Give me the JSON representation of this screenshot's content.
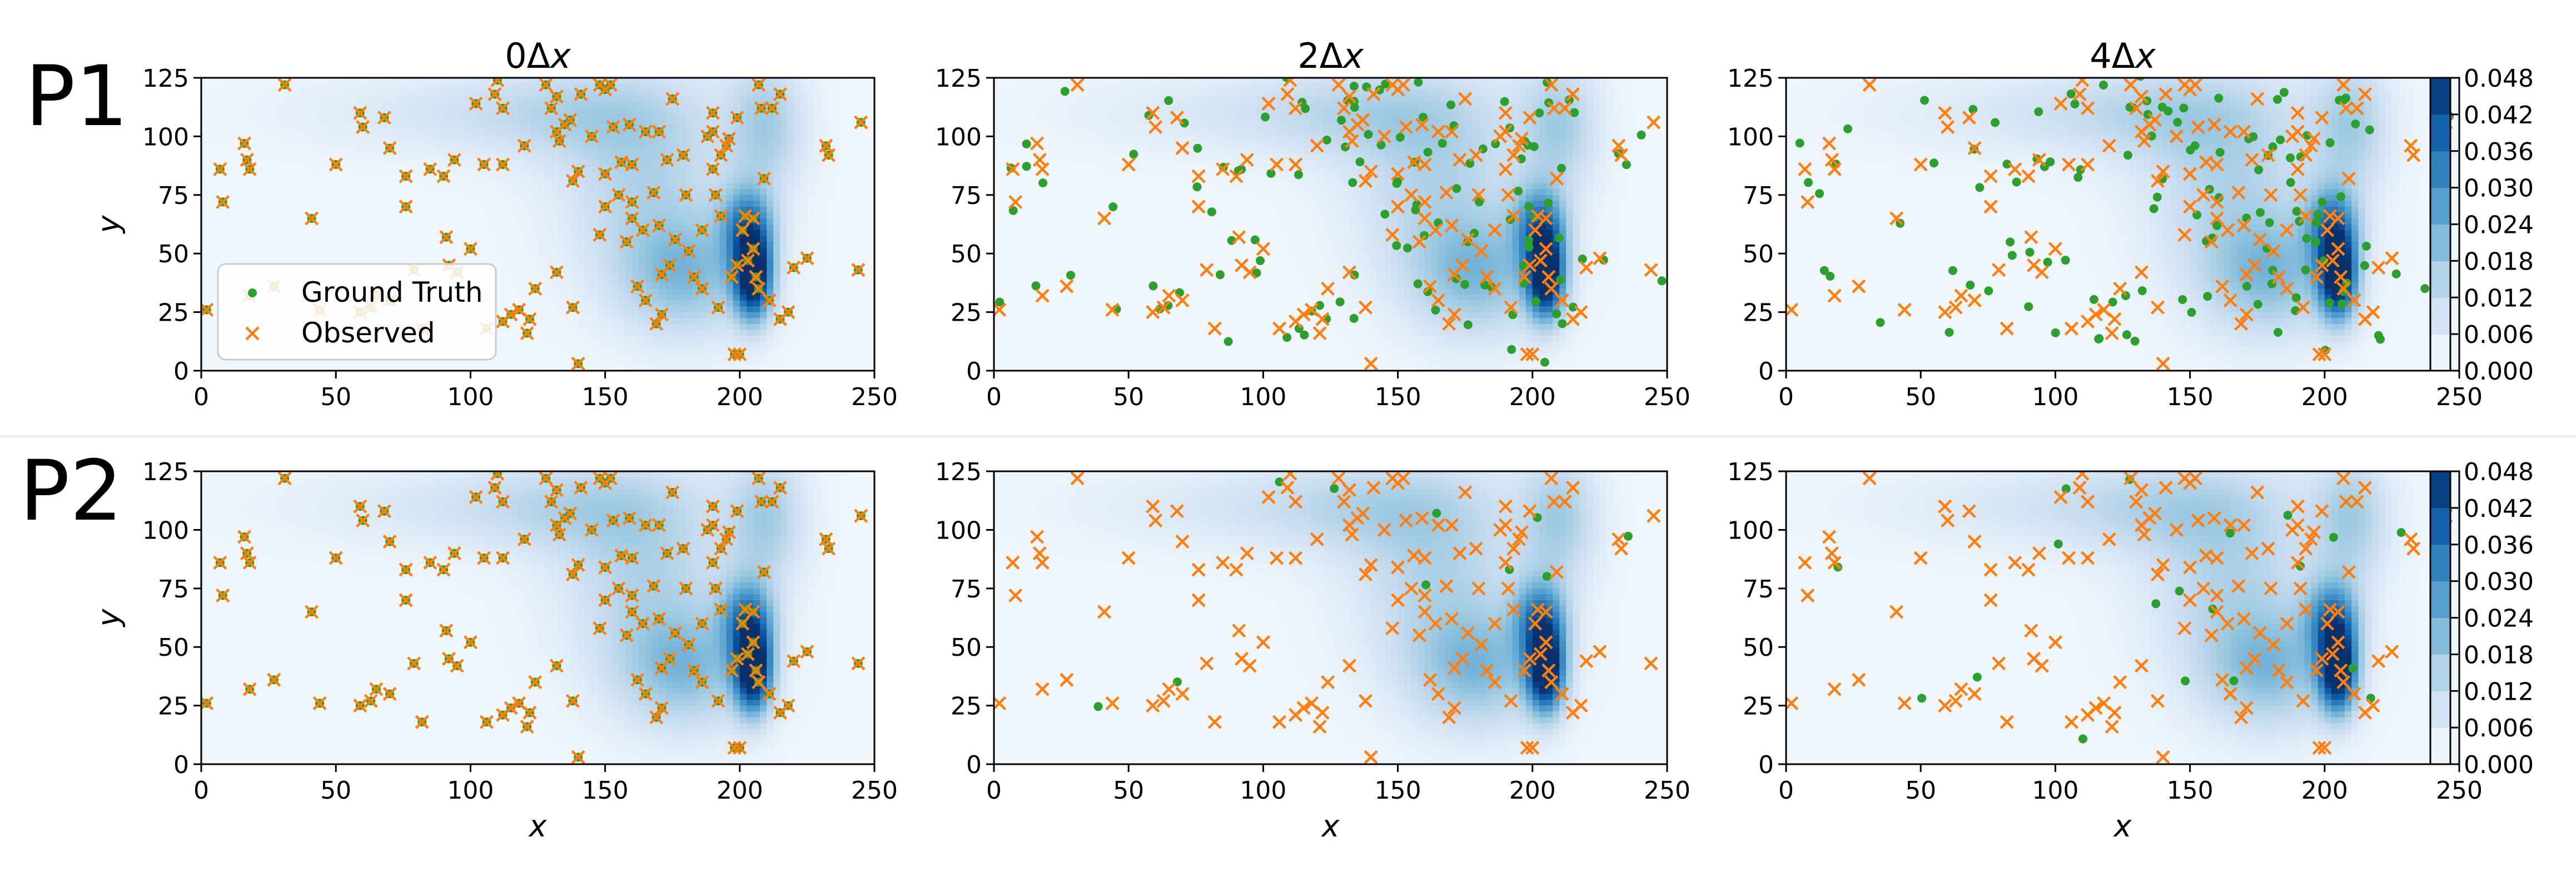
{
  "figure": {
    "row_labels": [
      "P1",
      "P2"
    ],
    "column_titles": [
      "0Δ",
      "2Δ",
      "4Δ"
    ],
    "column_title_var": "x",
    "legend": {
      "ground_truth": "Ground Truth",
      "observed": "Observed",
      "placement": "lower-left of top-left panel"
    },
    "colors": {
      "ground_truth": "#2ca02c",
      "observed": "#ff7f0e",
      "density_low": "#f1f7fd",
      "density_high": "#08306b"
    }
  },
  "chart_data": {
    "type": "scatter",
    "xlabel": "x",
    "ylabel": "y",
    "xlim": [
      0,
      250
    ],
    "ylim": [
      0,
      125
    ],
    "xticks": [
      0,
      50,
      100,
      150,
      200,
      250
    ],
    "yticks": [
      0,
      25,
      50,
      75,
      100,
      125
    ],
    "colorbar": {
      "ticks": [
        "0.000",
        "0.006",
        "0.012",
        "0.018",
        "0.024",
        "0.030",
        "0.036",
        "0.042",
        "0.048"
      ],
      "range": [
        0,
        0.048
      ],
      "cmap": "Blues"
    },
    "density_blobs": [
      {
        "x": 205,
        "y": 40,
        "sx": 5,
        "sy": 13,
        "w": 1.0
      },
      {
        "x": 203,
        "y": 62,
        "sx": 7,
        "sy": 12,
        "w": 0.55
      },
      {
        "x": 180,
        "y": 40,
        "sx": 18,
        "sy": 18,
        "w": 0.35
      },
      {
        "x": 165,
        "y": 80,
        "sx": 22,
        "sy": 30,
        "w": 0.25
      },
      {
        "x": 210,
        "y": 105,
        "sx": 10,
        "sy": 20,
        "w": 0.3
      },
      {
        "x": 140,
        "y": 110,
        "sx": 30,
        "sy": 15,
        "w": 0.2
      },
      {
        "x": 85,
        "y": 110,
        "sx": 40,
        "sy": 12,
        "w": 0.1
      }
    ],
    "observed_base": [
      [
        2,
        26
      ],
      [
        7,
        86
      ],
      [
        8,
        72
      ],
      [
        16,
        97
      ],
      [
        17,
        90
      ],
      [
        18,
        86
      ],
      [
        31,
        122
      ],
      [
        44,
        26
      ],
      [
        50,
        88
      ],
      [
        59,
        110
      ],
      [
        60,
        104
      ],
      [
        59,
        25
      ],
      [
        63,
        27
      ],
      [
        68,
        108
      ],
      [
        70,
        95
      ],
      [
        70,
        30
      ],
      [
        76,
        70
      ],
      [
        79,
        43
      ],
      [
        85,
        86
      ],
      [
        90,
        83
      ],
      [
        92,
        45
      ],
      [
        94,
        90
      ],
      [
        95,
        42
      ],
      [
        102,
        114
      ],
      [
        106,
        18
      ],
      [
        109,
        118
      ],
      [
        110,
        124
      ],
      [
        112,
        112
      ],
      [
        112,
        88
      ],
      [
        112,
        21
      ],
      [
        118,
        26
      ],
      [
        121,
        16
      ],
      [
        122,
        22
      ],
      [
        128,
        122
      ],
      [
        130,
        112
      ],
      [
        132,
        117
      ],
      [
        132,
        102
      ],
      [
        132,
        42
      ],
      [
        133,
        98
      ],
      [
        135,
        105
      ],
      [
        137,
        107
      ],
      [
        138,
        81
      ],
      [
        140,
        85
      ],
      [
        140,
        3
      ],
      [
        141,
        118
      ],
      [
        145,
        100
      ],
      [
        148,
        122
      ],
      [
        150,
        120
      ],
      [
        150,
        84
      ],
      [
        150,
        70
      ],
      [
        148,
        58
      ],
      [
        152,
        122
      ],
      [
        153,
        104
      ],
      [
        155,
        75
      ],
      [
        156,
        89
      ],
      [
        159,
        105
      ],
      [
        160,
        88
      ],
      [
        160,
        72
      ],
      [
        160,
        65
      ],
      [
        162,
        36
      ],
      [
        164,
        60
      ],
      [
        165,
        102
      ],
      [
        165,
        30
      ],
      [
        168,
        76
      ],
      [
        169,
        20
      ],
      [
        170,
        102
      ],
      [
        170,
        62
      ],
      [
        171,
        24
      ],
      [
        173,
        90
      ],
      [
        174,
        45
      ],
      [
        175,
        116
      ],
      [
        176,
        56
      ],
      [
        179,
        92
      ],
      [
        180,
        75
      ],
      [
        181,
        51
      ],
      [
        183,
        40
      ],
      [
        186,
        60
      ],
      [
        188,
        100
      ],
      [
        190,
        110
      ],
      [
        190,
        102
      ],
      [
        190,
        86
      ],
      [
        191,
        75
      ],
      [
        192,
        27
      ],
      [
        193,
        92
      ],
      [
        193,
        66
      ],
      [
        195,
        96
      ],
      [
        196,
        99
      ],
      [
        198,
        7
      ],
      [
        199,
        108
      ],
      [
        200,
        7
      ],
      [
        201,
        60
      ],
      [
        202,
        66
      ],
      [
        203,
        47
      ],
      [
        205,
        52
      ],
      [
        205,
        65
      ],
      [
        206,
        40
      ],
      [
        207,
        35
      ],
      [
        207,
        122
      ],
      [
        208,
        112
      ],
      [
        209,
        82
      ],
      [
        211,
        30
      ],
      [
        212,
        112
      ],
      [
        215,
        118
      ],
      [
        215,
        22
      ],
      [
        220,
        44
      ],
      [
        218,
        25
      ],
      [
        225,
        48
      ],
      [
        232,
        96
      ],
      [
        233,
        92
      ],
      [
        244,
        43
      ],
      [
        245,
        106
      ],
      [
        18,
        32
      ],
      [
        27,
        36
      ],
      [
        115,
        24
      ],
      [
        124,
        35
      ],
      [
        138,
        27
      ],
      [
        158,
        55
      ],
      [
        171,
        41
      ],
      [
        186,
        35
      ],
      [
        197,
        40
      ],
      [
        199,
        45
      ],
      [
        120,
        96
      ],
      [
        100,
        52
      ],
      [
        105,
        88
      ],
      [
        91,
        57
      ],
      [
        76,
        83
      ],
      [
        65,
        32
      ],
      [
        41,
        65
      ],
      [
        82,
        18
      ]
    ],
    "panels": [
      {
        "row": "P1",
        "shift": "0Δx",
        "ground_truth_shift": 0,
        "ground_truth_fraction": 1.0,
        "show_legend": true
      },
      {
        "row": "P1",
        "shift": "2Δx",
        "ground_truth_shift": 2,
        "ground_truth_fraction": 1.0,
        "show_legend": false
      },
      {
        "row": "P1",
        "shift": "4Δx",
        "ground_truth_shift": 4,
        "ground_truth_fraction": 1.0,
        "show_legend": false
      },
      {
        "row": "P2",
        "shift": "0Δx",
        "ground_truth_shift": 0,
        "ground_truth_fraction": 1.0,
        "show_legend": false
      },
      {
        "row": "P2",
        "shift": "2Δx",
        "ground_truth_shift": 2,
        "ground_truth_fraction": 0.08,
        "show_legend": false
      },
      {
        "row": "P2",
        "shift": "4Δx",
        "ground_truth_shift": 4,
        "ground_truth_fraction": 0.15,
        "show_legend": false
      }
    ]
  }
}
